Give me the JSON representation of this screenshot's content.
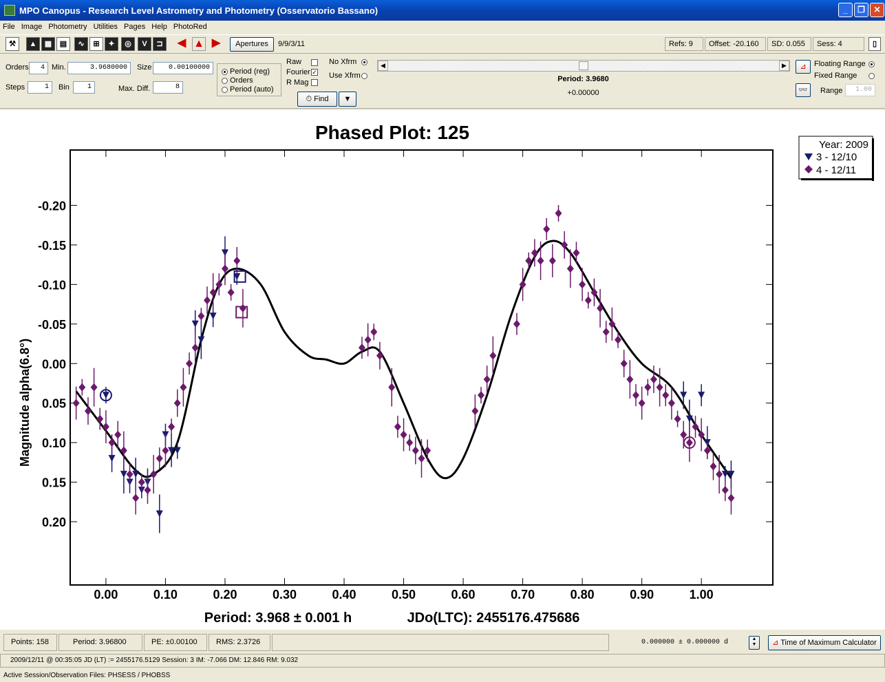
{
  "window": {
    "title": "MPO Canopus - Research Level Astrometry and Photometry (Osservatorio Bassano)"
  },
  "menu": [
    "File",
    "Image",
    "Photometry",
    "Utilities",
    "Pages",
    "Help",
    "PhotoRed"
  ],
  "toolbar": {
    "apertures_label": "Apertures",
    "date_value": "9/9/3/11",
    "refs": "Refs: 9",
    "offset": "Offset: -20.160",
    "sd": "SD: 0.055",
    "sess": "Sess: 4"
  },
  "controls": {
    "orders_label": "Orders",
    "orders_value": "4",
    "min_label": "Min.",
    "min_value": "3.9680000",
    "size_label": "Size",
    "size_value": "0.00100000",
    "steps_label": "Steps",
    "steps_value": "1",
    "bin_label": "Bin",
    "bin_value": "1",
    "maxdiff_label": "Max. Diff.",
    "maxdiff_value": "8",
    "period_reg": "Period (reg)",
    "orders_opt": "Orders",
    "period_auto": "Period (auto)",
    "raw": "Raw",
    "fourier": "Fourier",
    "rmag": "R Mag",
    "noxfm": "No Xfrm",
    "usexfm": "Use Xfrm",
    "find_label": "Find",
    "period_display": "Period: 3.9680",
    "period_offset": "+0.00000",
    "floating_range": "Floating Range",
    "fixed_range": "Fixed Range",
    "range_label": "Range",
    "range_value": "1.00"
  },
  "chart_data": {
    "type": "scatter",
    "title": "Phased Plot: 125",
    "ylabel": "Magnitude alpha(6.8°)",
    "xlabel_period": "Period: 3.968 ± 0.001 h",
    "xlabel_jd": "JDo(LTC): 2455176.475686",
    "xlim": [
      -0.06,
      1.12
    ],
    "ylim_display_top_to_bottom": [
      -0.27,
      0.28
    ],
    "y_inverted": true,
    "x_ticks": [
      0.0,
      0.1,
      0.2,
      0.3,
      0.4,
      0.5,
      0.6,
      0.7,
      0.8,
      0.9,
      1.0
    ],
    "x_tick_labels": [
      "0.00",
      "0.10",
      "0.20",
      "0.30",
      "0.40",
      "0.50",
      "0.60",
      "0.70",
      "0.80",
      "0.90",
      "1.00"
    ],
    "y_ticks": [
      -0.2,
      -0.15,
      -0.1,
      -0.05,
      0.0,
      0.05,
      0.1,
      0.15,
      0.2
    ],
    "y_tick_labels": [
      "-0.20",
      "-0.15",
      "-0.10",
      "-0.05",
      "0.00",
      "0.05",
      "0.10",
      "0.15",
      "0.20"
    ],
    "legend": {
      "title": "Year: 2009",
      "placement": "top-right"
    },
    "series": [
      {
        "name": "3 - 12/10",
        "marker": "triangle-down",
        "color": "#1a1a6e",
        "x": [
          0.0,
          0.01,
          0.03,
          0.04,
          0.05,
          0.06,
          0.07,
          0.09,
          0.1,
          0.11,
          0.12,
          0.15,
          0.16,
          0.18,
          0.2,
          0.22,
          0.97,
          0.98,
          1.0,
          1.01,
          1.04,
          1.05
        ],
        "y": [
          0.04,
          0.12,
          0.14,
          0.15,
          0.14,
          0.16,
          0.15,
          0.19,
          0.09,
          0.11,
          0.11,
          -0.05,
          -0.03,
          -0.06,
          -0.14,
          -0.11,
          0.04,
          0.07,
          0.04,
          0.1,
          0.14,
          0.14
        ]
      },
      {
        "name": "4 - 12/11",
        "marker": "diamond",
        "color": "#6b1a6b",
        "x": [
          -0.05,
          -0.04,
          -0.03,
          -0.02,
          -0.01,
          0.0,
          0.01,
          0.02,
          0.03,
          0.04,
          0.05,
          0.06,
          0.07,
          0.08,
          0.09,
          0.1,
          0.11,
          0.12,
          0.13,
          0.14,
          0.15,
          0.16,
          0.17,
          0.18,
          0.19,
          0.2,
          0.21,
          0.22,
          0.23,
          0.43,
          0.44,
          0.45,
          0.46,
          0.48,
          0.49,
          0.5,
          0.51,
          0.52,
          0.53,
          0.54,
          0.62,
          0.63,
          0.64,
          0.65,
          0.69,
          0.7,
          0.71,
          0.72,
          0.73,
          0.74,
          0.75,
          0.76,
          0.77,
          0.78,
          0.79,
          0.8,
          0.81,
          0.82,
          0.83,
          0.84,
          0.85,
          0.86,
          0.87,
          0.88,
          0.89,
          0.9,
          0.91,
          0.92,
          0.93,
          0.94,
          0.95,
          0.96,
          0.97,
          0.98,
          0.99,
          1.0,
          1.01,
          1.02,
          1.03,
          1.04,
          1.05
        ],
        "y": [
          0.05,
          0.03,
          0.06,
          0.03,
          0.07,
          0.08,
          0.1,
          0.09,
          0.11,
          0.14,
          0.17,
          0.15,
          0.16,
          0.14,
          0.12,
          0.11,
          0.08,
          0.05,
          0.03,
          0.0,
          -0.02,
          -0.06,
          -0.08,
          -0.09,
          -0.1,
          -0.12,
          -0.09,
          -0.13,
          -0.07,
          -0.02,
          -0.03,
          -0.04,
          -0.01,
          0.03,
          0.08,
          0.09,
          0.1,
          0.11,
          0.12,
          0.11,
          0.06,
          0.04,
          0.02,
          -0.01,
          -0.05,
          -0.1,
          -0.13,
          -0.14,
          -0.13,
          -0.17,
          -0.13,
          -0.19,
          -0.15,
          -0.12,
          -0.14,
          -0.1,
          -0.08,
          -0.09,
          -0.07,
          -0.04,
          -0.05,
          -0.03,
          0.0,
          0.02,
          0.04,
          0.05,
          0.03,
          0.02,
          0.03,
          0.04,
          0.05,
          0.07,
          0.09,
          0.1,
          0.08,
          0.09,
          0.11,
          0.13,
          0.14,
          0.16,
          0.17
        ]
      }
    ],
    "fit_curve": {
      "x": [
        -0.05,
        0.0,
        0.05,
        0.08,
        0.12,
        0.16,
        0.19,
        0.22,
        0.26,
        0.3,
        0.34,
        0.37,
        0.4,
        0.43,
        0.46,
        0.5,
        0.54,
        0.57,
        0.6,
        0.64,
        0.68,
        0.72,
        0.75,
        0.78,
        0.82,
        0.86,
        0.9,
        0.95,
        1.0,
        1.05
      ],
      "y": [
        0.035,
        0.085,
        0.135,
        0.14,
        0.1,
        -0.03,
        -0.1,
        -0.12,
        -0.1,
        -0.04,
        -0.01,
        -0.005,
        0.0,
        -0.015,
        -0.015,
        0.05,
        0.12,
        0.145,
        0.12,
        0.04,
        -0.06,
        -0.135,
        -0.155,
        -0.14,
        -0.09,
        -0.04,
        0.0,
        0.03,
        0.09,
        0.145
      ]
    },
    "highlighted_points": [
      {
        "x": 0.0,
        "y": 0.04,
        "shape": "circle",
        "series": "3 - 12/10"
      },
      {
        "x": 0.225,
        "y": -0.11,
        "shape": "square",
        "series": "3 - 12/10"
      },
      {
        "x": 0.228,
        "y": -0.065,
        "shape": "square",
        "series": "4 - 12/11"
      },
      {
        "x": 0.98,
        "y": 0.1,
        "shape": "circle",
        "series": "4 - 12/11"
      }
    ]
  },
  "status": {
    "points": "Points: 158",
    "period": "Period: 3.96800",
    "pe": "PE: ±0.00100",
    "rms": "RMS: 2.3726",
    "tmax_value": "0.000000  ±  0.000000 d",
    "tmax_button": "Time of Maximum Calculator",
    "line2": "2009/12/11 @ 00:35:05 JD (LT) := 2455176.5129  Session: 3      IM: -7.066   DM: 12.846    RM: 9.032",
    "line3": "Active Session/Observation Files: PHSESS / PHOBSS"
  }
}
